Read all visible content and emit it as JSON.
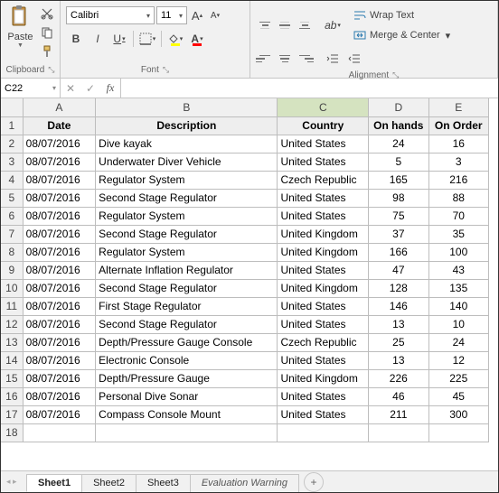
{
  "ribbon": {
    "clipboard": {
      "label": "Clipboard",
      "paste": "Paste"
    },
    "font": {
      "label": "Font",
      "name": "Calibri",
      "size": "11",
      "bold": "B",
      "italic": "I",
      "underline": "U",
      "increase": "A",
      "decrease": "A"
    },
    "alignment": {
      "label": "Alignment",
      "wrap": "Wrap Text",
      "merge": "Merge & Center"
    }
  },
  "namebox": "C22",
  "fx": "fx",
  "columns": [
    "A",
    "B",
    "C",
    "D",
    "E"
  ],
  "selected_col": 2,
  "headers": [
    "Date",
    "Description",
    "Country",
    "On hands",
    "On Order"
  ],
  "rows": [
    [
      "08/07/2016",
      "Dive kayak",
      "United States",
      "24",
      "16"
    ],
    [
      "08/07/2016",
      "Underwater Diver Vehicle",
      "United States",
      "5",
      "3"
    ],
    [
      "08/07/2016",
      "Regulator System",
      "Czech Republic",
      "165",
      "216"
    ],
    [
      "08/07/2016",
      "Second Stage Regulator",
      "United States",
      "98",
      "88"
    ],
    [
      "08/07/2016",
      "Regulator System",
      "United States",
      "75",
      "70"
    ],
    [
      "08/07/2016",
      "Second Stage Regulator",
      "United Kingdom",
      "37",
      "35"
    ],
    [
      "08/07/2016",
      "Regulator System",
      "United Kingdom",
      "166",
      "100"
    ],
    [
      "08/07/2016",
      "Alternate Inflation Regulator",
      "United States",
      "47",
      "43"
    ],
    [
      "08/07/2016",
      "Second Stage Regulator",
      "United Kingdom",
      "128",
      "135"
    ],
    [
      "08/07/2016",
      "First Stage Regulator",
      "United States",
      "146",
      "140"
    ],
    [
      "08/07/2016",
      "Second Stage Regulator",
      "United States",
      "13",
      "10"
    ],
    [
      "08/07/2016",
      "Depth/Pressure Gauge Console",
      "Czech Republic",
      "25",
      "24"
    ],
    [
      "08/07/2016",
      "Electronic Console",
      "United States",
      "13",
      "12"
    ],
    [
      "08/07/2016",
      "Depth/Pressure Gauge",
      "United Kingdom",
      "226",
      "225"
    ],
    [
      "08/07/2016",
      "Personal Dive Sonar",
      "United States",
      "46",
      "45"
    ],
    [
      "08/07/2016",
      "Compass Console Mount",
      "United States",
      "211",
      "300"
    ]
  ],
  "tabs": {
    "sheets": [
      "Sheet1",
      "Sheet2",
      "Sheet3"
    ],
    "active": 0,
    "eval": "Evaluation Warning"
  },
  "colors": {
    "ribbon_bg": "#f1f1f1",
    "grid_border": "#bdbdbd",
    "header_bg": "#f0f0f0",
    "selcol_bg": "#d5e3c0"
  }
}
